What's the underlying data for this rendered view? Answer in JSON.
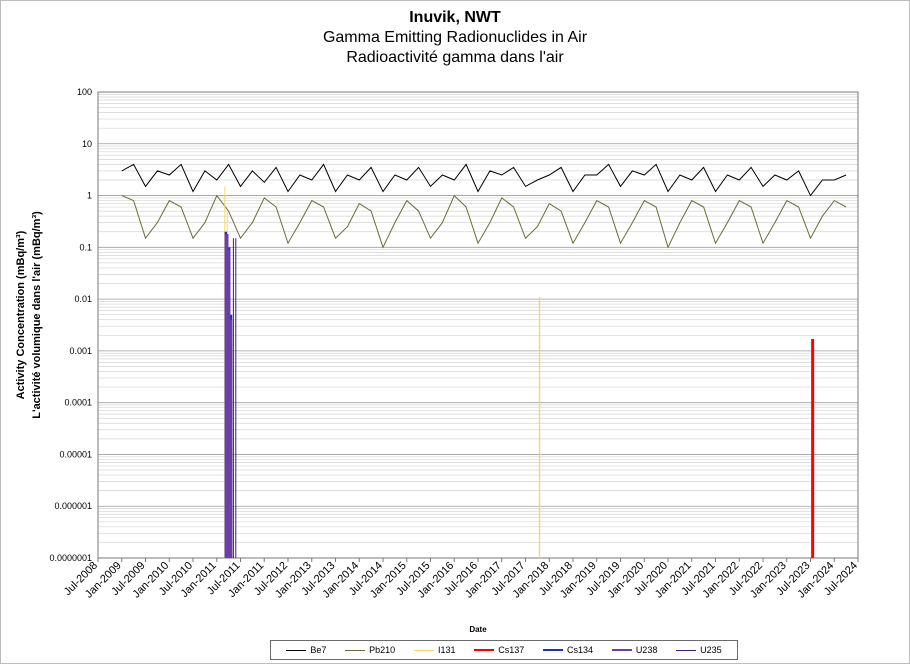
{
  "chart_data": {
    "type": "line",
    "title": "Inuvik, NWT",
    "subtitle": "Gamma Emitting Radionuclides in Air",
    "subtitle_fr": "Radioactivité gamma dans l'air",
    "xlabel": "Date",
    "ylabel": "Activity Concentration  (mBq/m³)",
    "ylabel_fr": "L'activité volumique dans l'air (mBq/m³)",
    "y_scale": "log",
    "ylim": [
      1e-07,
      100
    ],
    "y_ticks": [
      "100",
      "10",
      "1",
      "0.1",
      "0.01",
      "0.001",
      "0.0001",
      "0.00001",
      "0.000001",
      "0.0000001"
    ],
    "x_ticks": [
      "Jul-2008",
      "Jan-2009",
      "Jul-2009",
      "Jan-2010",
      "Jul-2010",
      "Jan-2011",
      "Jul-2011",
      "Jan-2011",
      "Jul-2012",
      "Jan-2013",
      "Jul-2013",
      "Jan-2014",
      "Jul-2014",
      "Jan-2015",
      "Jul-2015",
      "Jan-2016",
      "Jul-2016",
      "Jan-2017",
      "Jul-2017",
      "Jan-2018",
      "Jul-2018",
      "Jan-2019",
      "Jul-2019",
      "Jan-2020",
      "Jul-2020",
      "Jan-2021",
      "Jul-2021",
      "Jan-2022",
      "Jul-2022",
      "Jan-2023",
      "Jul-2023",
      "Jan-2024",
      "Jul-2024"
    ],
    "grid": true,
    "legend_position": "bottom",
    "series": [
      {
        "name": "Be7",
        "color": "#000000",
        "x": [
          2009.0,
          2009.25,
          2009.5,
          2009.75,
          2010.0,
          2010.25,
          2010.5,
          2010.75,
          2011.0,
          2011.25,
          2011.5,
          2011.75,
          2012.0,
          2012.25,
          2012.5,
          2012.75,
          2013.0,
          2013.25,
          2013.5,
          2013.75,
          2014.0,
          2014.25,
          2014.5,
          2014.75,
          2015.0,
          2015.25,
          2015.5,
          2015.75,
          2016.0,
          2016.25,
          2016.5,
          2016.75,
          2017.0,
          2017.25,
          2017.5,
          2017.75,
          2018.0,
          2018.25,
          2018.5,
          2018.75,
          2019.0,
          2019.25,
          2019.5,
          2019.75,
          2020.0,
          2020.25,
          2020.5,
          2020.75,
          2021.0,
          2021.25,
          2021.5,
          2021.75,
          2022.0,
          2022.25,
          2022.5,
          2022.75,
          2023.0,
          2023.25,
          2023.5,
          2023.75,
          2024.0,
          2024.25
        ],
        "values": [
          3,
          4,
          1.5,
          3,
          2.5,
          4,
          1.2,
          3,
          2,
          4,
          1.5,
          3,
          1.8,
          3.5,
          1.2,
          2.5,
          2,
          4,
          1.2,
          2.5,
          2,
          3.5,
          1.2,
          2.5,
          2,
          3.5,
          1.5,
          2.5,
          2,
          4,
          1.2,
          3,
          2.5,
          3.5,
          1.5,
          2,
          2.5,
          3.5,
          1.2,
          2.5,
          2.5,
          4,
          1.5,
          3,
          2.5,
          4,
          1.2,
          2.5,
          2,
          3.5,
          1.2,
          2.5,
          2,
          3.5,
          1.5,
          2.5,
          2,
          3,
          1,
          2,
          2,
          2.5
        ]
      },
      {
        "name": "Pb210",
        "color": "#6b6b3a",
        "x": [
          2009.0,
          2009.25,
          2009.5,
          2009.75,
          2010.0,
          2010.25,
          2010.5,
          2010.75,
          2011.0,
          2011.25,
          2011.5,
          2011.75,
          2012.0,
          2012.25,
          2012.5,
          2012.75,
          2013.0,
          2013.25,
          2013.5,
          2013.75,
          2014.0,
          2014.25,
          2014.5,
          2014.75,
          2015.0,
          2015.25,
          2015.5,
          2015.75,
          2016.0,
          2016.25,
          2016.5,
          2016.75,
          2017.0,
          2017.25,
          2017.5,
          2017.75,
          2018.0,
          2018.25,
          2018.5,
          2018.75,
          2019.0,
          2019.25,
          2019.5,
          2019.75,
          2020.0,
          2020.25,
          2020.5,
          2020.75,
          2021.0,
          2021.25,
          2021.5,
          2021.75,
          2022.0,
          2022.25,
          2022.5,
          2022.75,
          2023.0,
          2023.25,
          2023.5,
          2023.75,
          2024.0,
          2024.25
        ],
        "values": [
          1,
          0.8,
          0.15,
          0.3,
          0.8,
          0.6,
          0.15,
          0.3,
          1,
          0.5,
          0.15,
          0.3,
          0.9,
          0.6,
          0.12,
          0.3,
          0.8,
          0.6,
          0.15,
          0.25,
          0.7,
          0.5,
          0.1,
          0.3,
          0.8,
          0.5,
          0.15,
          0.3,
          1,
          0.6,
          0.12,
          0.3,
          0.9,
          0.6,
          0.15,
          0.25,
          0.7,
          0.5,
          0.12,
          0.3,
          0.8,
          0.6,
          0.12,
          0.3,
          0.8,
          0.6,
          0.1,
          0.3,
          0.8,
          0.6,
          0.12,
          0.3,
          0.8,
          0.6,
          0.12,
          0.3,
          0.8,
          0.6,
          0.15,
          0.4,
          0.8,
          0.6
        ]
      },
      {
        "name": "I131",
        "color": "#f5d86b",
        "x": [
          2011.17,
          2011.22,
          2011.27,
          2011.32,
          2017.79,
          2017.8
        ],
        "values": [
          1.5,
          0.5,
          0.05,
          0.003,
          0.011,
          0.011
        ]
      },
      {
        "name": "Cs137",
        "color": "#ff0000",
        "x": [
          2023.54,
          2023.55
        ],
        "values": [
          0.0017,
          0.0017
        ]
      },
      {
        "name": "Cs134",
        "color": "#1f2fbf",
        "x": [
          2011.19,
          2011.22,
          2011.26,
          2011.3
        ],
        "values": [
          0.2,
          0.18,
          0.1,
          0.005
        ]
      },
      {
        "name": "U238",
        "color": "#6a3fa8",
        "x": [
          2011.19,
          2011.22,
          2011.26,
          2011.3
        ],
        "values": [
          0.18,
          0.17,
          0.09,
          0.004
        ]
      },
      {
        "name": "U235",
        "color": "#3b1f7a",
        "x": [
          2011.35,
          2011.4
        ],
        "values": [
          0.15,
          0.15
        ]
      }
    ]
  }
}
